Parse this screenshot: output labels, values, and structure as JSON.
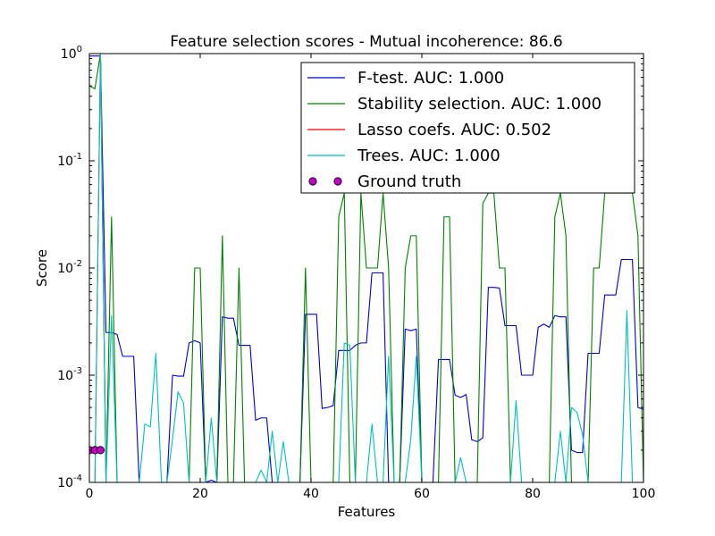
{
  "chart_data": {
    "type": "line",
    "title": "Feature selection scores - Mutual incoherence: 86.6",
    "xlabel": "Features",
    "ylabel": "Score",
    "xlim": [
      0,
      100
    ],
    "ylim": [
      0.0001,
      1
    ],
    "yscale": "log",
    "grid": false,
    "legend_position": "top-right",
    "x_ticks": [
      {
        "value": 0,
        "label": "0"
      },
      {
        "value": 20,
        "label": "20"
      },
      {
        "value": 40,
        "label": "40"
      },
      {
        "value": 60,
        "label": "60"
      },
      {
        "value": 80,
        "label": "80"
      },
      {
        "value": 100,
        "label": "100"
      }
    ],
    "y_ticks": [
      {
        "value": 0.0001,
        "base": "10",
        "exp": "-4"
      },
      {
        "value": 0.001,
        "base": "10",
        "exp": "-3"
      },
      {
        "value": 0.01,
        "base": "10",
        "exp": "-2"
      },
      {
        "value": 0.1,
        "base": "10",
        "exp": "-1"
      },
      {
        "value": 1,
        "base": "10",
        "exp": "0"
      }
    ],
    "series": [
      {
        "name": "F-test. AUC: 1.000",
        "color": "#0000cc",
        "kind": "line",
        "x": [
          0,
          1,
          2,
          3,
          4,
          5,
          6,
          7,
          8,
          9,
          10,
          11,
          12,
          13,
          14,
          15,
          16,
          17,
          18,
          19,
          20,
          21,
          22,
          23,
          24,
          25,
          26,
          27,
          28,
          29,
          30,
          31,
          32,
          33,
          34,
          35,
          36,
          37,
          38,
          39,
          40,
          41,
          42,
          43,
          44,
          45,
          46,
          47,
          48,
          49,
          50,
          51,
          52,
          53,
          54,
          55,
          56,
          57,
          58,
          59,
          60,
          61,
          62,
          63,
          64,
          65,
          66,
          67,
          68,
          69,
          70,
          71,
          72,
          73,
          74,
          75,
          76,
          77,
          78,
          79,
          80,
          81,
          82,
          83,
          84,
          85,
          86,
          87,
          88,
          89,
          90,
          91,
          92,
          93,
          94,
          95,
          96,
          97,
          98,
          99,
          100
        ],
        "y": [
          0.95,
          0.95,
          0.95,
          0.0025,
          0.0025,
          0.0024,
          0.0015,
          0.0015,
          0.0015,
          0.0001,
          0.0001,
          0.0001,
          0.0001,
          0.0001,
          0.0001,
          0.001,
          0.00098,
          0.00098,
          0.002,
          0.0021,
          0.002,
          0.0001,
          0.000105,
          0.0001,
          0.0035,
          0.0034,
          0.0034,
          0.0019,
          0.0019,
          0.0019,
          0.00038,
          0.0004,
          0.0004,
          0.0001,
          0.0001,
          0.0001,
          0.0001,
          0.0001,
          0.0001,
          0.0037,
          0.0037,
          0.0037,
          0.00049,
          0.0005,
          0.00052,
          0.0017,
          0.0017,
          0.0017,
          0.0019,
          0.002,
          0.002,
          0.009,
          0.009,
          0.009,
          0.0001,
          0.0001,
          0.0001,
          0.0027,
          0.0026,
          0.0027,
          0.0001,
          0.0001,
          0.0001,
          0.0014,
          0.0014,
          0.0014,
          0.00065,
          0.00062,
          0.00066,
          0.00025,
          0.00024,
          0.00026,
          0.0066,
          0.0066,
          0.0065,
          0.0029,
          0.0029,
          0.0029,
          0.001,
          0.001,
          0.001,
          0.0028,
          0.003,
          0.0028,
          0.0036,
          0.0035,
          0.0035,
          0.0002,
          0.00019,
          0.00019,
          0.0016,
          0.0016,
          0.0016,
          0.0056,
          0.0056,
          0.0056,
          0.012,
          0.012,
          0.012,
          0.0005,
          0.00048
        ]
      },
      {
        "name": "Stability selection. AUC: 1.000",
        "color": "#008000",
        "kind": "line",
        "x": [
          0,
          1,
          2,
          3,
          4,
          5,
          6,
          7,
          8,
          9,
          10,
          11,
          12,
          13,
          14,
          15,
          16,
          17,
          18,
          19,
          20,
          21,
          22,
          23,
          24,
          25,
          26,
          27,
          28,
          29,
          30,
          31,
          32,
          33,
          34,
          35,
          36,
          37,
          38,
          39,
          40,
          41,
          42,
          43,
          44,
          45,
          46,
          47,
          48,
          49,
          50,
          51,
          52,
          53,
          54,
          55,
          56,
          57,
          58,
          59,
          60,
          61,
          62,
          63,
          64,
          65,
          66,
          67,
          68,
          69,
          70,
          71,
          72,
          73,
          74,
          75,
          76,
          77,
          78,
          79,
          80,
          81,
          82,
          83,
          84,
          85,
          86,
          87,
          88,
          89,
          90,
          91,
          92,
          93,
          94,
          95,
          96,
          97,
          98,
          99,
          100
        ],
        "y": [
          0.5,
          0.47,
          1.0,
          0.0001,
          0.03,
          0.0001,
          0.0001,
          0.0001,
          0.0001,
          0.0001,
          0.0001,
          0.0001,
          0.0001,
          0.0001,
          0.0001,
          0.0001,
          0.0001,
          0.0001,
          0.0001,
          0.01,
          0.01,
          0.0001,
          0.0001,
          0.0001,
          0.02,
          0.0001,
          0.0001,
          0.01,
          0.0001,
          0.0001,
          0.0001,
          0.0001,
          0.0001,
          0.0001,
          0.0001,
          0.0001,
          0.0001,
          0.0001,
          0.0001,
          0.01,
          0.0001,
          0.0001,
          0.0001,
          0.0001,
          0.0001,
          0.03,
          0.05,
          0.0001,
          0.0001,
          0.05,
          0.01,
          0.01,
          0.01,
          0.05,
          0.01,
          0.0001,
          0.0001,
          0.01,
          0.02,
          0.02,
          0.0001,
          0.0001,
          0.0001,
          0.0001,
          0.03,
          0.03,
          0.0001,
          0.0001,
          0.0001,
          0.0001,
          0.0001,
          0.04,
          0.05,
          0.05,
          0.01,
          0.01,
          0.0001,
          0.0001,
          0.0001,
          0.0001,
          0.0001,
          0.0001,
          0.0001,
          0.0001,
          0.03,
          0.05,
          0.02,
          0.0001,
          0.0001,
          0.0001,
          0.0001,
          0.01,
          0.01,
          0.05,
          0.05,
          0.05,
          0.05,
          0.05,
          0.05,
          0.02,
          0.0001
        ]
      },
      {
        "name": "Lasso coefs. AUC: 0.502",
        "color": "#ff0000",
        "kind": "line",
        "x": [
          0,
          1,
          2,
          3,
          100
        ],
        "y": [
          0.0001,
          0.0001,
          1.0,
          0.0001,
          0.0001
        ]
      },
      {
        "name": "Trees. AUC: 1.000",
        "color": "#00bfbf",
        "kind": "line",
        "x": [
          0,
          1,
          2,
          3,
          4,
          5,
          6,
          7,
          8,
          9,
          10,
          11,
          12,
          13,
          14,
          15,
          16,
          17,
          18,
          19,
          20,
          21,
          22,
          23,
          24,
          25,
          26,
          27,
          28,
          29,
          30,
          31,
          32,
          33,
          34,
          35,
          36,
          37,
          38,
          39,
          40,
          41,
          42,
          43,
          44,
          45,
          46,
          47,
          48,
          49,
          50,
          51,
          52,
          53,
          54,
          55,
          56,
          57,
          58,
          59,
          60,
          61,
          62,
          63,
          64,
          65,
          66,
          67,
          68,
          69,
          70,
          71,
          72,
          73,
          74,
          75,
          76,
          77,
          78,
          79,
          80,
          81,
          82,
          83,
          84,
          85,
          86,
          87,
          88,
          89,
          90,
          91,
          92,
          93,
          94,
          95,
          96,
          97,
          98,
          99,
          100
        ],
        "y": [
          0.0001,
          0.0001,
          1.0,
          0.0001,
          0.0036,
          0.0001,
          0.0001,
          0.0001,
          0.0001,
          0.0001,
          0.00035,
          0.00033,
          0.0016,
          0.0001,
          0.0001,
          0.00025,
          0.0007,
          0.00055,
          0.0001,
          0.0001,
          0.0001,
          0.0001,
          0.0004,
          0.0001,
          0.0001,
          0.0001,
          0.0001,
          0.0001,
          0.0001,
          0.0001,
          0.0001,
          0.00013,
          0.0001,
          0.0003,
          0.0001,
          0.00024,
          0.0001,
          0.0001,
          0.0001,
          0.0001,
          0.0001,
          0.0001,
          0.0001,
          0.0001,
          0.0001,
          0.0001,
          0.002,
          0.0019,
          0.0001,
          0.0001,
          0.0001,
          0.00035,
          0.0001,
          0.0001,
          0.0015,
          0.0001,
          0.0001,
          0.0001,
          0.00025,
          0.0015,
          0.0001,
          0.0001,
          0.0001,
          0.0001,
          0.0001,
          0.0001,
          0.0001,
          0.00017,
          0.0001,
          0.0001,
          0.0001,
          0.0001,
          0.0001,
          0.0001,
          0.0001,
          0.0001,
          0.0001,
          0.00058,
          0.0001,
          0.0001,
          0.0001,
          0.0001,
          0.0001,
          0.0001,
          0.0001,
          0.0003,
          0.0001,
          0.0005,
          0.00045,
          0.00028,
          0.0001,
          0.0001,
          0.0001,
          0.0001,
          0.0001,
          0.0001,
          0.0001,
          0.004,
          0.0001,
          0.0001,
          0.0001
        ]
      },
      {
        "name": "Ground truth",
        "color": "#bf00bf",
        "kind": "points",
        "x": [
          0,
          1,
          2
        ],
        "y": [
          0.0002,
          0.0002,
          0.0002
        ]
      }
    ]
  }
}
